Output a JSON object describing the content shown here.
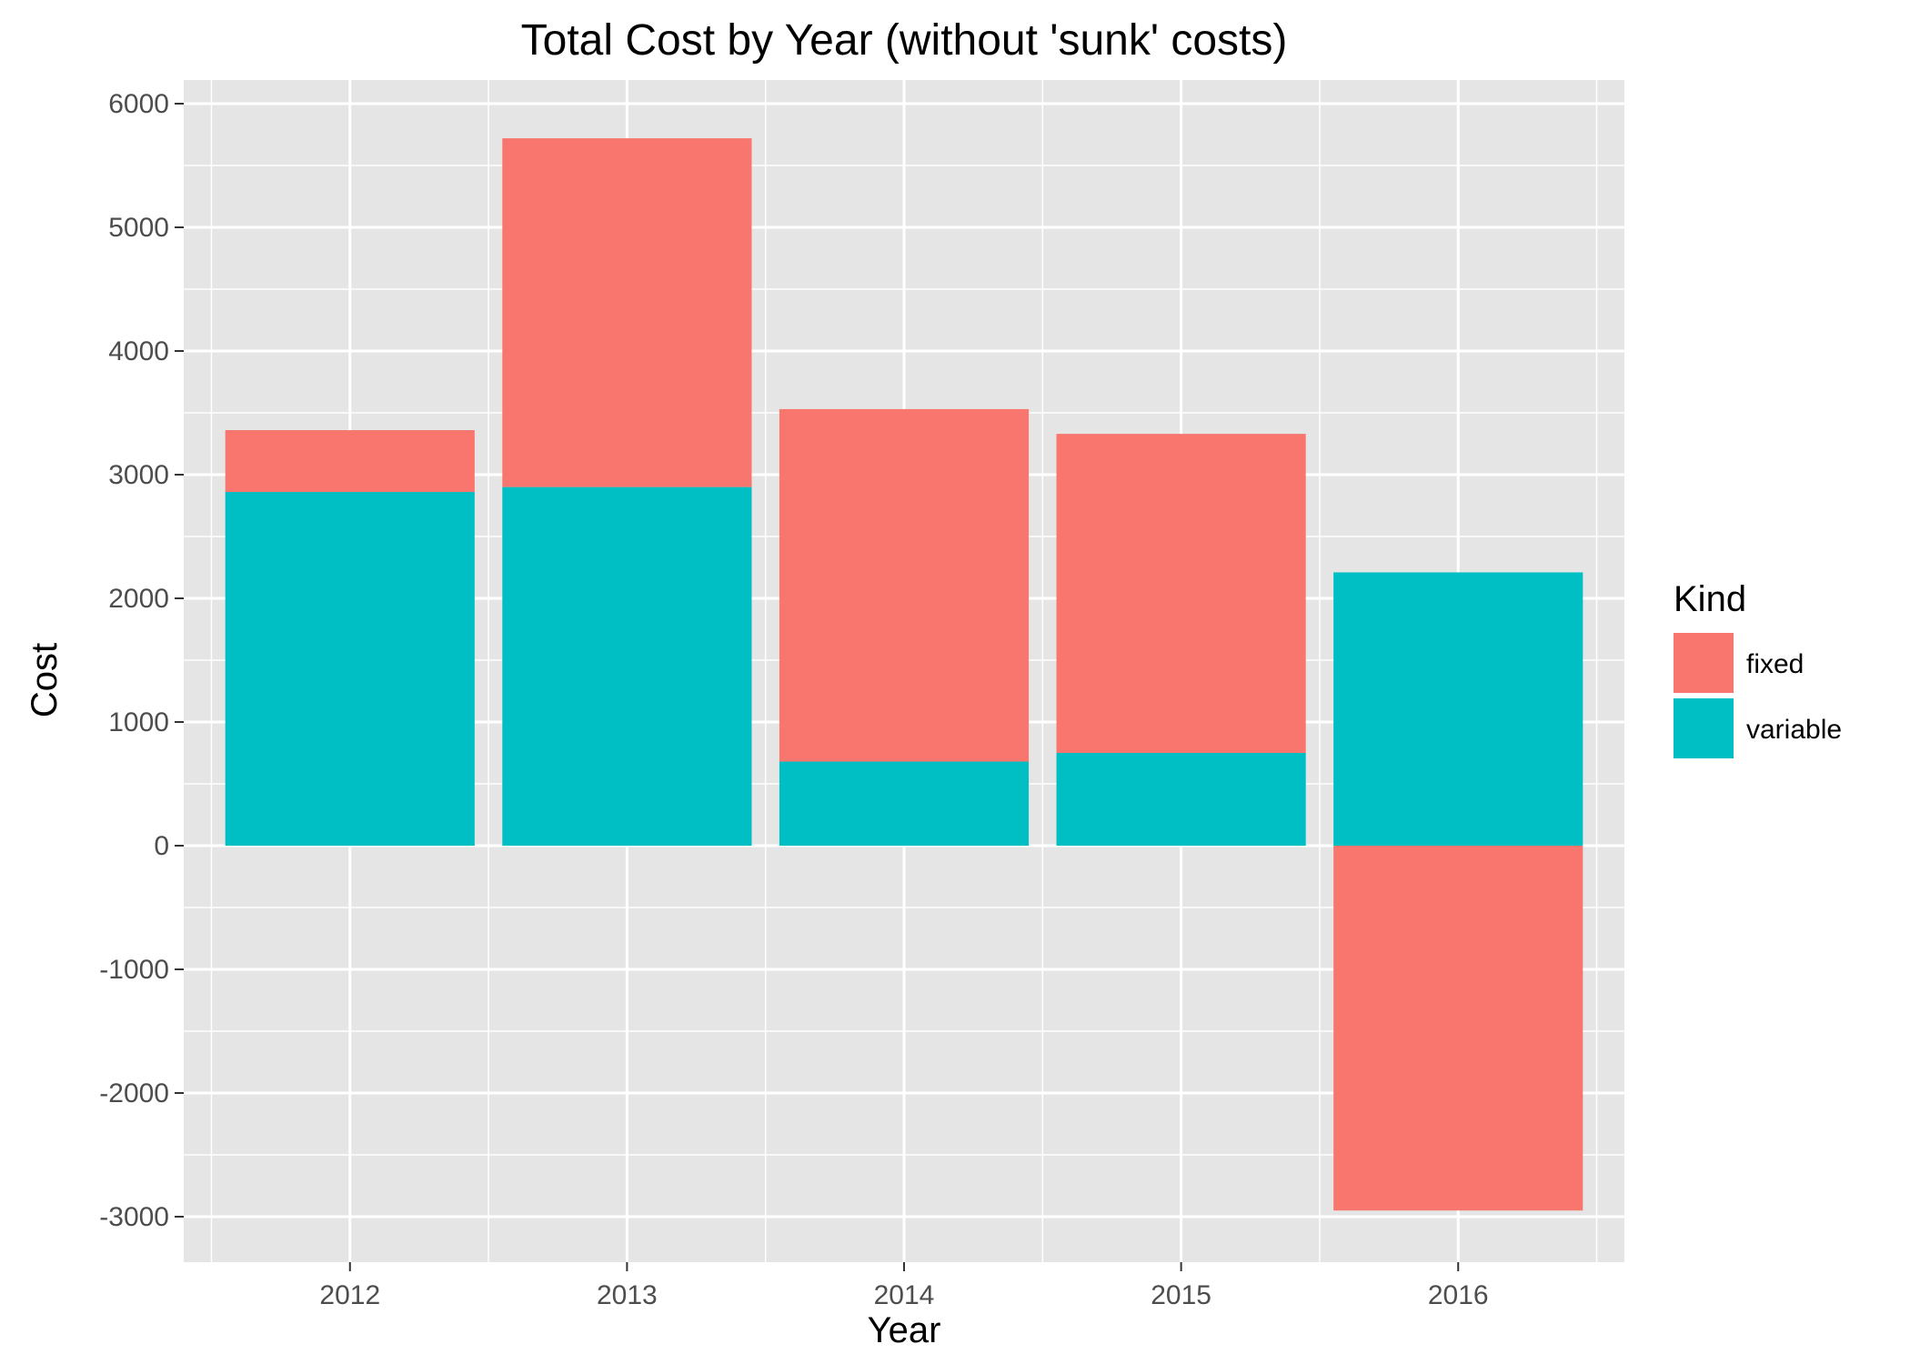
{
  "chart_data": {
    "type": "bar",
    "stacked": true,
    "title": "Total Cost by Year (without 'sunk' costs)",
    "xlabel": "Year",
    "ylabel": "Cost",
    "categories": [
      "2012",
      "2013",
      "2014",
      "2015",
      "2016"
    ],
    "series": [
      {
        "name": "fixed",
        "color": "#F8766D",
        "values": [
          500,
          2820,
          2850,
          2580,
          -2950
        ]
      },
      {
        "name": "variable",
        "color": "#00BFC4",
        "values": [
          2860,
          2900,
          680,
          750,
          2210
        ]
      }
    ],
    "ylim": [
      -3400,
      6000
    ],
    "yticks": [
      -3000,
      -2000,
      -1000,
      0,
      1000,
      2000,
      3000,
      4000,
      5000,
      6000
    ],
    "grid": true,
    "legend": {
      "title": "Kind",
      "position": "right"
    },
    "colors": {
      "panel": "#E5E5E5",
      "grid": "#FFFFFF",
      "axis_text": "#4D4D4D"
    }
  }
}
